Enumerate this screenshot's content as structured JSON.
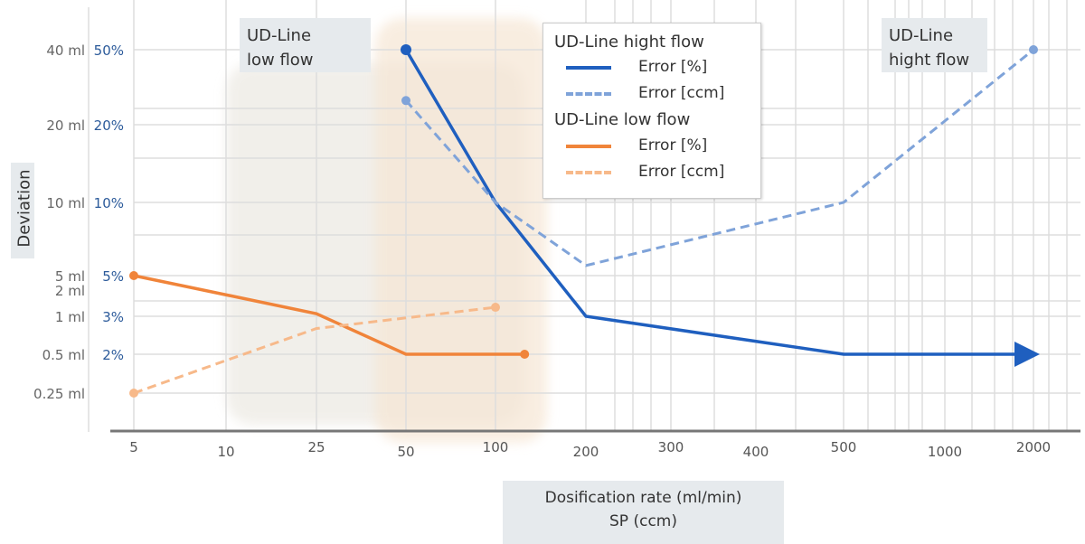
{
  "chart_data": {
    "type": "line",
    "xlabel": [
      "Dosification rate (ml/min)",
      "SP (ccm)"
    ],
    "ylabel": "Deviation",
    "x_ticks": [
      5,
      10,
      25,
      50,
      100,
      200,
      300,
      400,
      500,
      1000,
      2000
    ],
    "y_ticks_percent": [
      "50%",
      "20%",
      "10%",
      "5%",
      "3%",
      "2%"
    ],
    "y_ticks_ml": [
      "40 ml",
      "20 ml",
      "10 ml",
      "5 ml",
      "2 ml",
      "1 ml",
      "0.5 ml",
      "0.25 ml"
    ],
    "regions": [
      {
        "label": "UD-Line low flow",
        "x_range": [
          10,
          130
        ],
        "color": "#ece9e2"
      },
      {
        "label": "UD-Line hight flow",
        "x_range": [
          40,
          140
        ],
        "color": "#f6e6d4"
      }
    ],
    "corner_labels": {
      "low": [
        "UD-Line",
        "low flow"
      ],
      "high": [
        "UD-Line",
        "hight flow"
      ]
    },
    "legend": {
      "placement": "top-center",
      "groups": [
        {
          "title": "UD-Line hight flow",
          "entries": [
            "Error [%]",
            "Error [ccm]"
          ]
        },
        {
          "title": "UD-Line low flow",
          "entries": [
            "Error [%]",
            "Error [ccm]"
          ]
        }
      ]
    },
    "series": [
      {
        "name": "UD-Line hight flow Error [%]",
        "unit": "percent",
        "color": "#1f5fbf",
        "dashed": false,
        "x": [
          50,
          100,
          200,
          500,
          2000
        ],
        "y": [
          50,
          10,
          3,
          2,
          2
        ],
        "arrow_end": true
      },
      {
        "name": "UD-Line hight flow Error [ccm]",
        "unit": "ml",
        "color": "#7fa3d9",
        "dashed": true,
        "x": [
          50,
          100,
          200,
          500,
          2000
        ],
        "y": [
          25,
          10,
          5.5,
          10,
          40
        ]
      },
      {
        "name": "UD-Line low flow Error [%]",
        "unit": "percent",
        "color": "#f0843a",
        "dashed": false,
        "x": [
          5,
          25,
          50,
          125
        ],
        "y": [
          5,
          3.1,
          2,
          2
        ]
      },
      {
        "name": "UD-Line low flow Error [ccm]",
        "unit": "ml",
        "color": "#f7b98a",
        "dashed": true,
        "x": [
          5,
          25,
          100
        ],
        "y": [
          0.25,
          0.8,
          1.5
        ]
      }
    ]
  }
}
